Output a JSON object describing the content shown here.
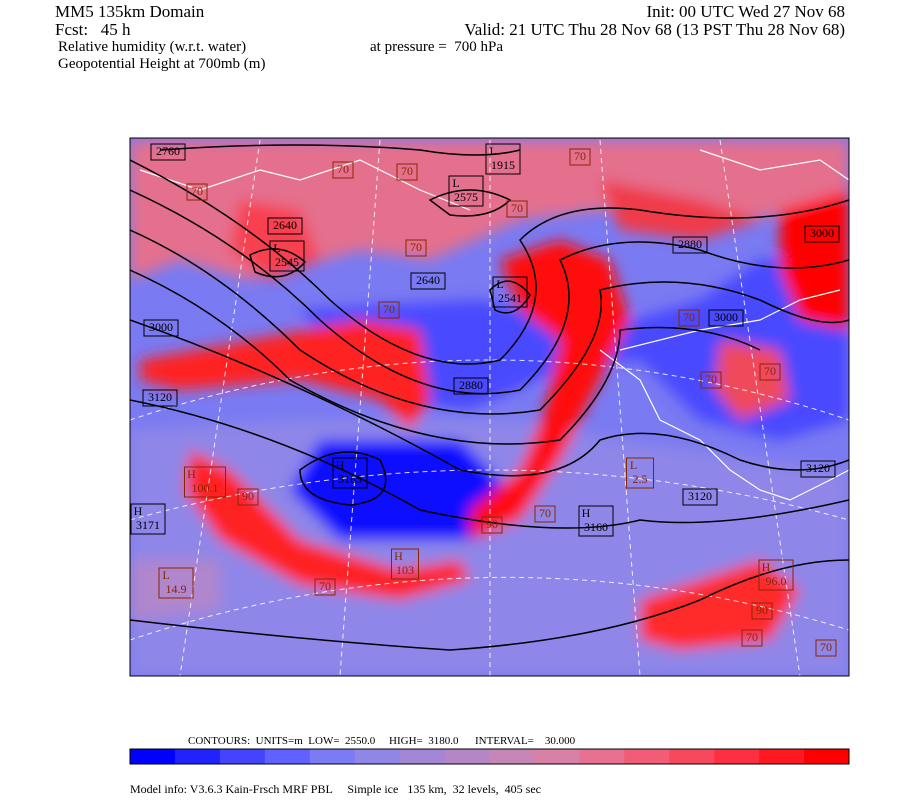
{
  "header": {
    "title": "MM5 135km Domain",
    "forecast": "Fcst:   45 h",
    "field": "Relative humidity (w.r.t. water)",
    "level": "at pressure =  700 hPa",
    "overlay": "Geopotential Height at 700mb (m)",
    "init": "Init: 00 UTC Wed 27 Nov 68",
    "valid": "Valid: 21 UTC Thu 28 Nov 68 (13 PST Thu 28 Nov 68)"
  },
  "map": {
    "height_label_color": "#000000",
    "humidity_label_color": "#8b2500",
    "height_labels": [
      {
        "text": "2760"
      },
      {
        "top": "L",
        "text": "1915"
      },
      {
        "top": "L",
        "text": "2575"
      },
      {
        "text": "2640"
      },
      {
        "top": "L",
        "text": "2545"
      },
      {
        "text": "2640"
      },
      {
        "top": "L",
        "text": "2541"
      },
      {
        "text": "2880"
      },
      {
        "text": "3000"
      },
      {
        "text": "2880"
      },
      {
        "text": "3000"
      },
      {
        "text": "3120"
      },
      {
        "top": "H",
        "text": "3165"
      },
      {
        "top": "H",
        "text": "3171"
      },
      {
        "top": "H",
        "text": "3160"
      },
      {
        "text": "3120"
      },
      {
        "text": "3120"
      },
      {
        "text": "3000"
      }
    ],
    "humidity_labels": [
      {
        "text": "70"
      },
      {
        "text": "70"
      },
      {
        "text": "70"
      },
      {
        "text": "70"
      },
      {
        "text": "70"
      },
      {
        "text": "70"
      },
      {
        "text": "70"
      },
      {
        "text": "70"
      },
      {
        "text": "70"
      },
      {
        "text": "70"
      },
      {
        "top": "H",
        "text": "100.1"
      },
      {
        "text": "90"
      },
      {
        "top": "L",
        "text": "2.5"
      },
      {
        "top": "H",
        "text": "103"
      },
      {
        "text": "70"
      },
      {
        "top": "L",
        "text": "14.9"
      },
      {
        "top": "H",
        "text": "96.0"
      },
      {
        "text": "90"
      },
      {
        "text": "70"
      },
      {
        "text": "70"
      },
      {
        "text": "90"
      },
      {
        "text": "70"
      }
    ]
  },
  "colorbar": {
    "colors": [
      "#0000ff",
      "#2222ff",
      "#4444ff",
      "#6161ff",
      "#7b7bf5",
      "#8f86e6",
      "#a386d6",
      "#b586c6",
      "#c786b6",
      "#d980a6",
      "#e87090",
      "#f25c76",
      "#f8485c",
      "#fc3040",
      "#fe1820",
      "#ff0000"
    ]
  },
  "footer": {
    "contours": "CONTOURS:  UNITS=m  LOW=  2550.0     HIGH=  3180.0      INTERVAL=    30.000",
    "model_info": "Model info: V3.6.3 Kain-Frsch MRF PBL     Simple ice   135 km,  32 levels,  405 sec"
  }
}
